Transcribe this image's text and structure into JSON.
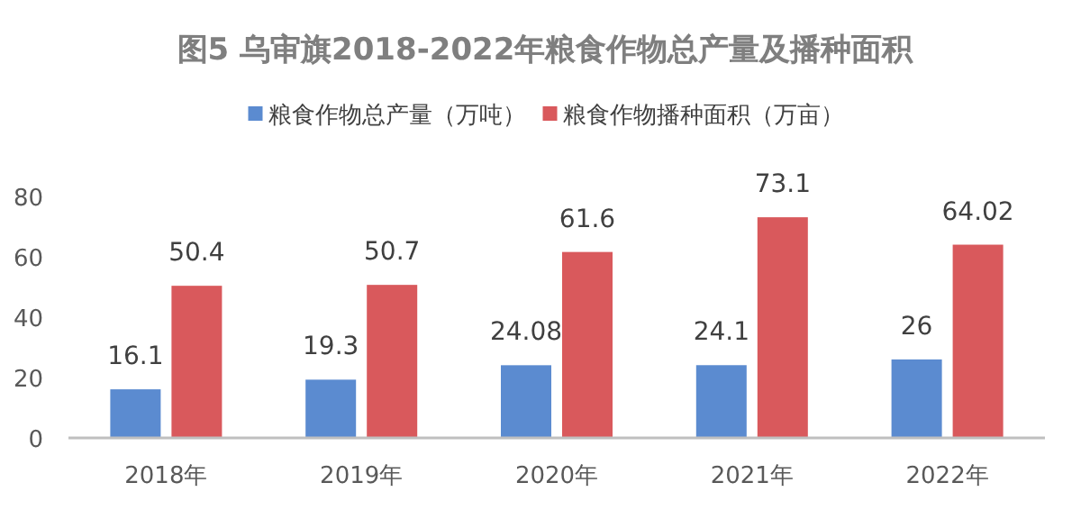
{
  "chart_data": {
    "type": "bar",
    "title": "图5  乌审旗2018-2022年粮食作物总产量及播种面积",
    "categories": [
      "2018年",
      "2019年",
      "2020年",
      "2021年",
      "2022年"
    ],
    "series": [
      {
        "name": "粮食作物总产量（万吨）",
        "color": "#5b8bd0",
        "values": [
          16.1,
          19.3,
          24.08,
          24.1,
          26
        ]
      },
      {
        "name": "粮食作物播种面积（万亩）",
        "color": "#d9595c",
        "values": [
          50.4,
          50.7,
          61.6,
          73.1,
          64.02
        ]
      }
    ],
    "ylim": [
      0,
      80
    ],
    "yticks": [
      0,
      20,
      40,
      60,
      80
    ],
    "grid": false,
    "legend": "top",
    "data_labels": true
  }
}
